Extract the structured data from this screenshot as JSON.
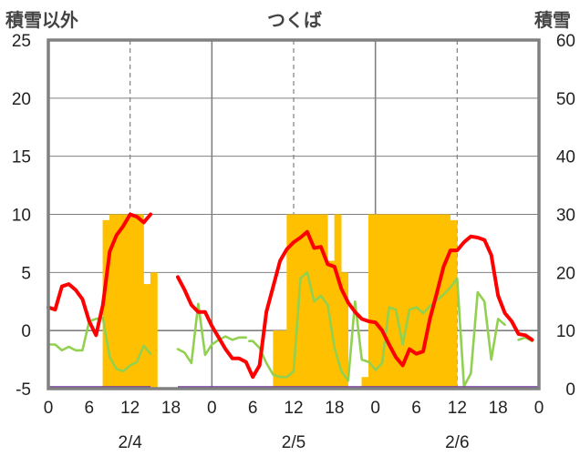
{
  "header": {
    "left_title": "積雪以外",
    "center_title": "つくば",
    "right_title": "積雪"
  },
  "chart_data": {
    "type": "bar+line",
    "title": "つくば",
    "left_axis": {
      "label": "積雪以外",
      "ylim": [
        -5,
        25
      ],
      "ticks": [
        -5,
        0,
        5,
        10,
        15,
        20,
        25
      ]
    },
    "right_axis": {
      "label": "積雪",
      "ylim": [
        0,
        60
      ],
      "ticks": [
        0,
        10,
        20,
        30,
        40,
        50,
        60
      ]
    },
    "x_ticks": [
      "0",
      "6",
      "12",
      "18",
      "0",
      "6",
      "12",
      "18",
      "0",
      "6",
      "12",
      "18",
      "0"
    ],
    "dates": [
      "2/4",
      "2/5",
      "2/6"
    ],
    "x_range_hours": [
      0,
      72
    ],
    "grid": true,
    "colors": {
      "snow": "#ffc000",
      "red": "#ff0000",
      "green": "#92d050",
      "purple": "#7030a0",
      "frame": "#808080"
    },
    "snow_depth": {
      "axis": "right",
      "hours": [
        32,
        33,
        34,
        35,
        36,
        37,
        38,
        39,
        40,
        41,
        42,
        43,
        46,
        47,
        48,
        49,
        50,
        51,
        52,
        53,
        54,
        55,
        56,
        57,
        58,
        59,
        60,
        61
      ],
      "values": [
        0,
        10,
        10,
        30,
        30,
        30,
        30,
        30,
        30,
        22,
        30,
        20,
        2,
        30,
        30,
        30,
        30,
        30,
        30,
        30,
        30,
        30,
        30,
        30,
        30,
        29,
        0,
        0
      ]
    },
    "snow_depth_day1": {
      "axis": "right",
      "hours": [
        8,
        9,
        10,
        11,
        12,
        13,
        14,
        15
      ],
      "values": [
        29,
        30,
        30,
        30,
        30,
        30,
        18,
        20
      ]
    },
    "series_red": {
      "axis": "left",
      "points": [
        [
          0,
          2
        ],
        [
          1,
          1.8
        ],
        [
          2,
          3.8
        ],
        [
          3,
          4
        ],
        [
          4,
          3.5
        ],
        [
          5,
          2.7
        ],
        [
          6,
          0.8
        ],
        [
          7,
          -0.4
        ],
        [
          8,
          2.2
        ],
        [
          9,
          6.8
        ],
        [
          10,
          8.2
        ],
        [
          11,
          9
        ],
        [
          12,
          10
        ],
        [
          13,
          9.8
        ],
        [
          14,
          9.3
        ],
        [
          15,
          10
        ],
        null,
        [
          19,
          4.6
        ],
        [
          20,
          3.5
        ],
        [
          21,
          2.2
        ],
        [
          22,
          1.6
        ],
        [
          23,
          1.6
        ],
        [
          24,
          0.4
        ],
        [
          25,
          -0.6
        ],
        [
          26,
          -1.6
        ],
        [
          27,
          -2.4
        ],
        [
          28,
          -2.4
        ],
        [
          29,
          -2.7
        ],
        [
          30,
          -4
        ],
        [
          31,
          -3
        ],
        [
          32,
          1.6
        ],
        [
          33,
          3.8
        ],
        [
          34,
          6
        ],
        [
          35,
          7
        ],
        [
          36,
          7.6
        ],
        [
          37,
          8
        ],
        [
          38,
          8.5
        ],
        [
          39,
          7.1
        ],
        [
          40,
          7.2
        ],
        [
          41,
          5.7
        ],
        [
          42,
          5.5
        ],
        [
          43,
          3.6
        ],
        [
          44,
          2.4
        ],
        [
          45,
          1.6
        ],
        [
          46,
          1
        ],
        [
          47,
          0.8
        ],
        [
          48,
          0.7
        ],
        [
          49,
          0
        ],
        [
          50,
          -1.2
        ],
        [
          51,
          -2.3
        ],
        [
          52,
          -3
        ],
        [
          53,
          -1.6
        ],
        [
          54,
          -2
        ],
        [
          55,
          -1.8
        ],
        [
          56,
          1
        ],
        [
          57,
          3.2
        ],
        [
          58,
          5.5
        ],
        [
          59,
          6.9
        ],
        [
          60,
          6.9
        ],
        [
          61,
          7.6
        ],
        [
          62,
          8.1
        ],
        [
          63,
          8
        ],
        [
          64,
          7.8
        ],
        [
          65,
          6.5
        ],
        [
          66,
          3
        ],
        [
          67,
          1.5
        ],
        [
          68,
          0.8
        ],
        [
          69,
          -0.3
        ],
        [
          70,
          -0.4
        ],
        [
          71,
          -0.8
        ]
      ]
    },
    "series_green": {
      "axis": "left",
      "points": [
        [
          0,
          -1.2
        ],
        [
          1,
          -1.2
        ],
        [
          2,
          -1.7
        ],
        [
          3,
          -1.4
        ],
        [
          4,
          -1.7
        ],
        [
          5,
          -1.7
        ],
        [
          6,
          0.8
        ],
        [
          7,
          1
        ],
        [
          8,
          1.1
        ],
        [
          9,
          -2.3
        ],
        [
          10,
          -3.3
        ],
        [
          11,
          -3.5
        ],
        [
          12,
          -3
        ],
        [
          13,
          -2.7
        ],
        [
          14,
          -1.3
        ],
        [
          15,
          -2
        ],
        null,
        [
          19,
          -1.6
        ],
        [
          20,
          -1.9
        ],
        [
          21,
          -2.8
        ],
        [
          22,
          2.3
        ],
        [
          23,
          -2.1
        ],
        [
          24,
          -1.2
        ],
        [
          25,
          -0.8
        ],
        [
          26,
          -0.5
        ],
        [
          27,
          -0.8
        ],
        [
          28,
          -0.6
        ],
        [
          29,
          -0.6
        ],
        null,
        [
          29.5,
          -0.9
        ],
        [
          30,
          -0.9
        ],
        [
          31,
          -1.5
        ],
        [
          32,
          -2.8
        ],
        [
          33,
          -3.8
        ],
        [
          34,
          -4
        ],
        [
          35,
          -4
        ],
        [
          36,
          -3.5
        ],
        [
          37,
          4.5
        ],
        [
          38,
          5
        ],
        [
          39,
          2.5
        ],
        [
          40,
          3
        ],
        [
          41,
          2.2
        ],
        [
          42,
          -1.5
        ],
        [
          43,
          -3.5
        ],
        [
          44,
          -4.3
        ],
        [
          45,
          2.5
        ],
        [
          46,
          -2.5
        ],
        [
          47,
          -2.7
        ],
        [
          48,
          -3.4
        ],
        [
          49,
          -2.8
        ],
        [
          50,
          2
        ],
        [
          51,
          1.8
        ],
        [
          52,
          -1.2
        ],
        [
          53,
          1.8
        ],
        [
          54,
          2
        ],
        [
          55,
          1.5
        ],
        [
          56,
          2.1
        ],
        [
          57,
          2.6
        ],
        [
          58,
          3.1
        ],
        [
          59,
          3.7
        ],
        [
          60,
          4.5
        ],
        [
          61,
          -4.8
        ],
        [
          62,
          -3.7
        ],
        [
          63,
          3.3
        ],
        [
          64,
          2.5
        ],
        [
          65,
          -2.5
        ],
        [
          66,
          1
        ],
        [
          67,
          0.5
        ],
        [
          68,
          null
        ],
        [
          69,
          -0.8
        ],
        [
          70,
          -0.6
        ],
        [
          71,
          -0.9
        ]
      ]
    },
    "series_purple": {
      "axis": "left",
      "value": -5,
      "segments": [
        [
          0,
          15
        ],
        [
          19,
          72
        ]
      ]
    }
  }
}
